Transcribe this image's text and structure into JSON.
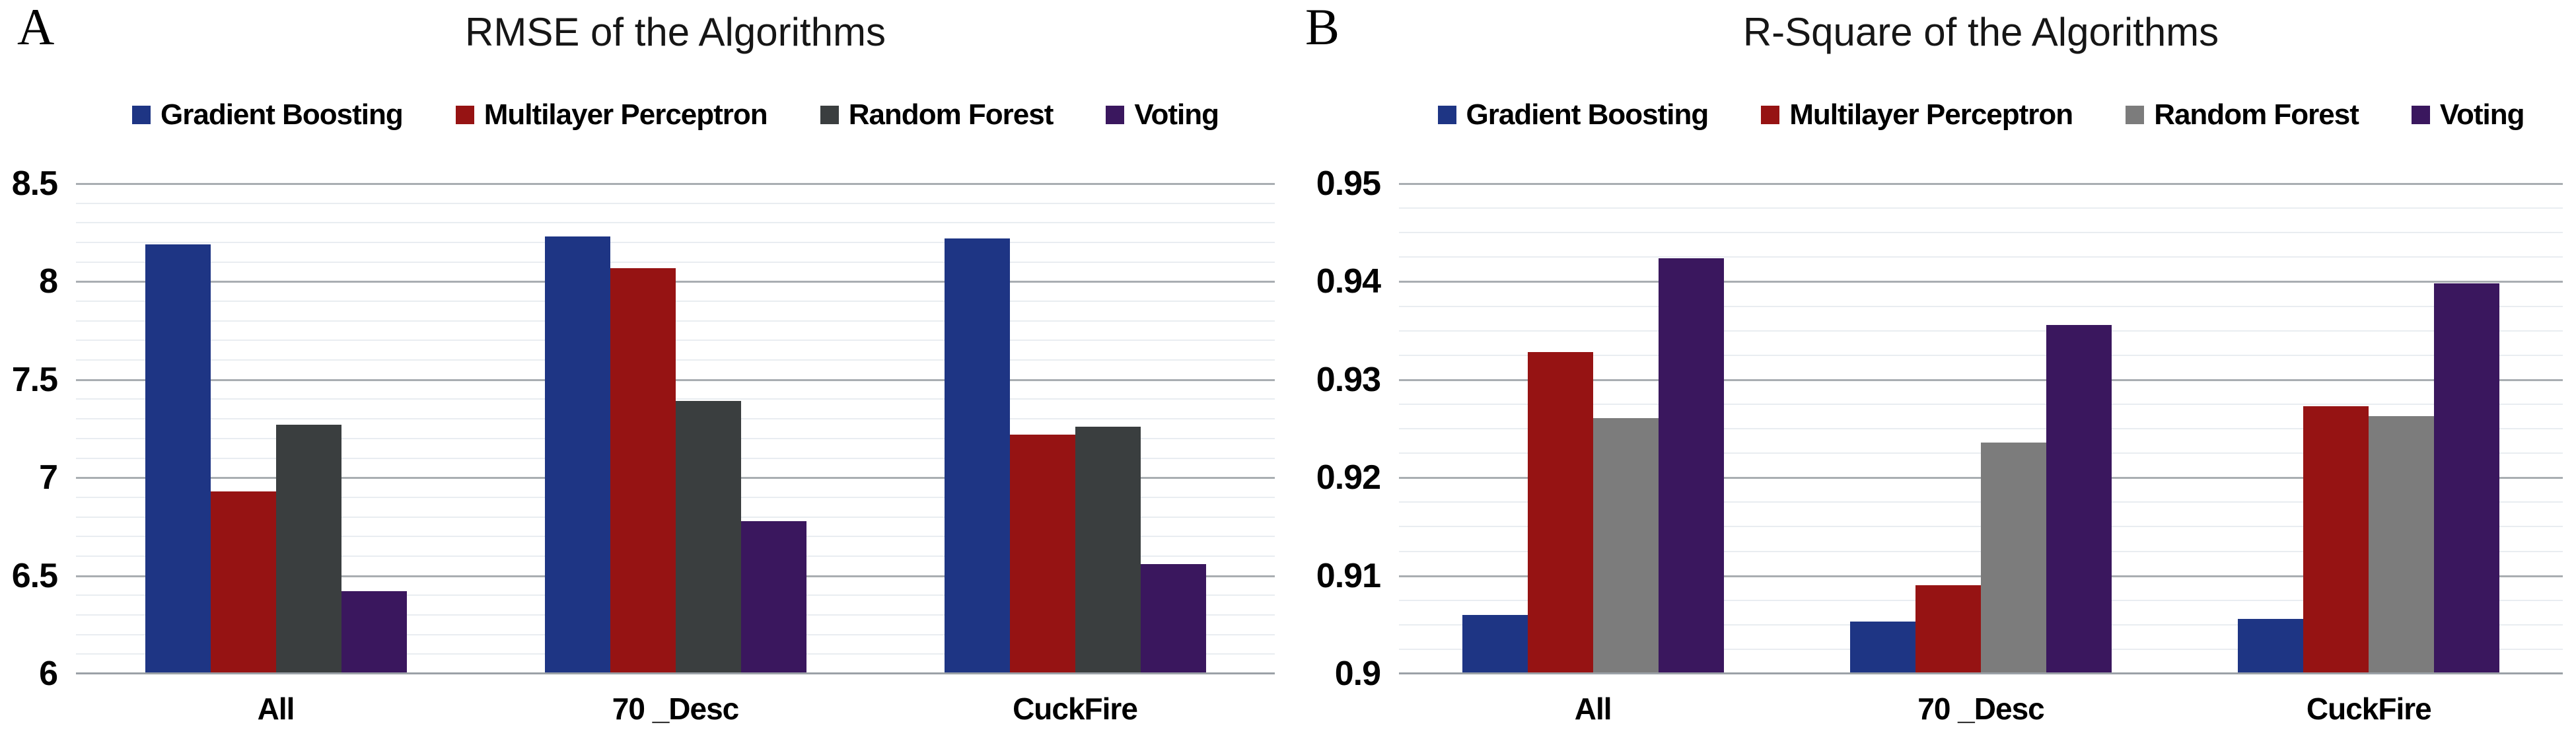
{
  "chart_data": [
    {
      "type": "bar",
      "panel_label": "A",
      "title": "RMSE of the Algorithms",
      "categories": [
        "All",
        "70 _Desc",
        "CuckFire"
      ],
      "series": [
        {
          "name": "Gradient Boosting",
          "color": "#1e3584",
          "values": [
            8.19,
            8.23,
            8.22
          ]
        },
        {
          "name": "Multilayer Perceptron",
          "color": "#961313",
          "values": [
            6.93,
            8.07,
            7.22
          ]
        },
        {
          "name": "Random Forest",
          "color": "#3a3e3f",
          "values": [
            7.27,
            7.39,
            7.26
          ]
        },
        {
          "name": "Voting",
          "color": "#3a175e",
          "values": [
            6.42,
            6.78,
            6.56
          ]
        }
      ],
      "xlabel": "",
      "ylabel": "",
      "ylim": [
        6,
        8.5
      ],
      "y_major_step": 0.5,
      "y_minor_step": 0.1,
      "y_tick_labels": [
        "8.5",
        "8",
        "7.5",
        "7",
        "6.5",
        "6"
      ],
      "grid": true,
      "legend_position": "top"
    },
    {
      "type": "bar",
      "panel_label": "B",
      "title": "R-Square of the Algorithms",
      "categories": [
        "All",
        "70 _Desc",
        "CuckFire"
      ],
      "series": [
        {
          "name": "Gradient Boosting",
          "color": "#1e3584",
          "values": [
            0.906,
            0.9053,
            0.9056
          ]
        },
        {
          "name": "Multilayer Perceptron",
          "color": "#961313",
          "values": [
            0.9328,
            0.909,
            0.9273
          ]
        },
        {
          "name": "Random Forest",
          "color": "#7c7c7c",
          "values": [
            0.9261,
            0.9236,
            0.9263
          ]
        },
        {
          "name": "Voting",
          "color": "#3a175e",
          "values": [
            0.9424,
            0.9356,
            0.9398
          ]
        }
      ],
      "xlabel": "",
      "ylabel": "",
      "ylim": [
        0.9,
        0.95
      ],
      "y_major_step": 0.01,
      "y_minor_step": 0.0025,
      "y_tick_labels": [
        "0.95",
        "0.94",
        "0.93",
        "0.92",
        "0.91",
        "0.9"
      ],
      "grid": true,
      "legend_position": "top"
    }
  ],
  "figure_colors": {
    "background": "#ffffff",
    "major_gridline": "#a9aeb2",
    "minor_gridline": "#e9edf1",
    "axis_line": "#9ba1a7",
    "text": "#000000"
  }
}
